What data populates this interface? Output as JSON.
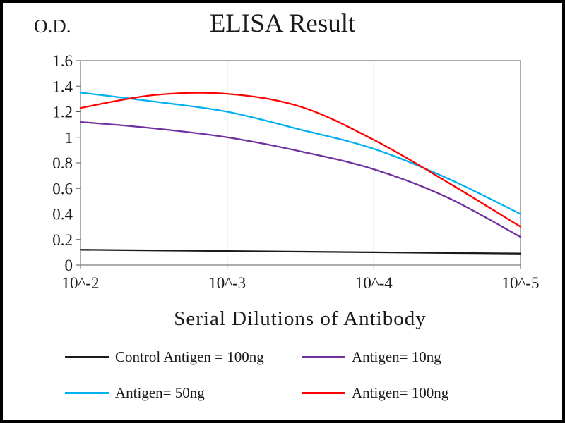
{
  "page": {
    "od_label": "O.D.",
    "title": "ELISA Result",
    "x_axis_label": "Serial Dilutions  of Antibody"
  },
  "chart_data": {
    "type": "line",
    "title": "ELISA Result",
    "ylabel": "O.D.",
    "xlabel": "Serial Dilutions of Antibody",
    "x_tick_labels": [
      "10^-2",
      "10^-3",
      "10^-4",
      "10^-5"
    ],
    "y_ticks": [
      0,
      0.2,
      0.4,
      0.6,
      0.8,
      1,
      1.2,
      1.4,
      1.6
    ],
    "ylim": [
      0,
      1.6
    ],
    "grid": "vertical-only",
    "legend_position": "bottom",
    "x_sample_positions": [
      0,
      0.5,
      1,
      1.5,
      2,
      2.5,
      3
    ],
    "series": [
      {
        "name": "Control Antigen = 100ng",
        "color": "#1a1a1a",
        "values": [
          0.12,
          0.115,
          0.11,
          0.105,
          0.1,
          0.095,
          0.09
        ]
      },
      {
        "name": "Antigen= 10ng",
        "color": "#7030a0",
        "values": [
          1.12,
          1.07,
          1.0,
          0.89,
          0.75,
          0.53,
          0.22
        ]
      },
      {
        "name": "Antigen= 50ng",
        "color": "#00b0f0",
        "values": [
          1.35,
          1.28,
          1.2,
          1.06,
          0.91,
          0.68,
          0.4
        ]
      },
      {
        "name": "Antigen= 100ng",
        "color": "#ff0000",
        "values": [
          1.23,
          1.33,
          1.34,
          1.24,
          0.98,
          0.65,
          0.3
        ]
      }
    ],
    "colors": {
      "gridline": "#b7b7b7",
      "plot_border": "#7f7f7f",
      "frame": "#000000"
    }
  }
}
